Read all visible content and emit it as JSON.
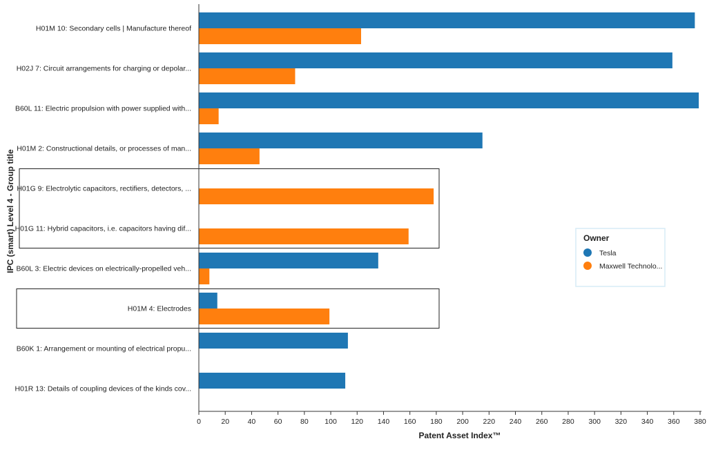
{
  "chart_data": {
    "type": "bar",
    "orientation": "horizontal",
    "categories": [
      "H01M 10: Secondary cells | Manufacture thereof",
      "H02J 7: Circuit arrangements for charging or depolar...",
      "B60L 11: Electric propulsion with power supplied with...",
      "H01M 2: Constructional details, or processes of man...",
      "H01G 9: Electrolytic capacitors, rectifiers, detectors, ...",
      "H01G 11: Hybrid capacitors, i.e. capacitors having dif...",
      "B60L 3: Electric devices on electrically-propelled veh...",
      "H01M 4: Electrodes",
      "B60K 1: Arrangement or mounting of electrical propu...",
      "H01R 13: Details of coupling devices of the kinds cov..."
    ],
    "series": [
      {
        "name": "Tesla",
        "color": "#1f77b4",
        "values": [
          376,
          359,
          379,
          215,
          null,
          null,
          136,
          14,
          113,
          111
        ]
      },
      {
        "name": "Maxwell Technolo...",
        "color": "#ff7f0e",
        "values": [
          123,
          73,
          15,
          46,
          178,
          159,
          8,
          99,
          null,
          null
        ]
      }
    ],
    "xlabel": "Patent Asset Index™",
    "ylabel": "IPC (smart) Level 4 - Group title",
    "xlim": [
      0,
      380
    ],
    "xticks": [
      0,
      20,
      40,
      60,
      80,
      100,
      120,
      140,
      160,
      180,
      200,
      220,
      240,
      260,
      280,
      300,
      320,
      340,
      360,
      380
    ],
    "legend": {
      "title": "Owner",
      "position": "right",
      "entries": [
        "Tesla",
        "Maxwell Technolo..."
      ]
    },
    "highlighted_categories": [
      [
        "H01G 9: Electrolytic capacitors, rectifiers, detectors, ...",
        "H01G 11: Hybrid capacitors, i.e. capacitors having dif..."
      ],
      [
        "H01M 4: Electrodes"
      ]
    ]
  }
}
